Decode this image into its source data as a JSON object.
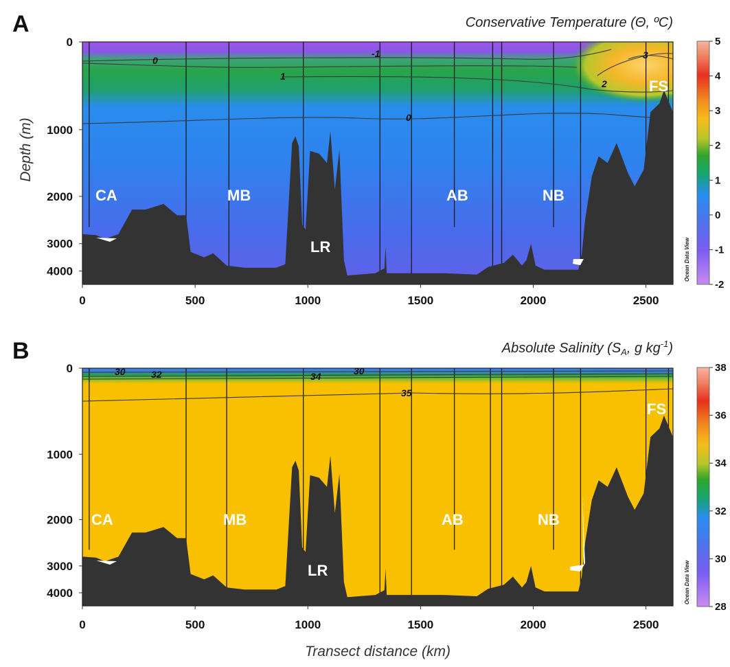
{
  "figure": {
    "x_axis_label": "Transect distance (km)",
    "colorbar_credit": "Ocean Data View"
  },
  "chart_data": [
    {
      "type": "heatmap",
      "panel_letter": "A",
      "title": "Conservative Temperature (Θ, ºC)",
      "title_parts": {
        "main": "Conservative Temperature (",
        "symbol": "Θ",
        "rest": ", ºC)"
      },
      "ylabel": "Depth (m)",
      "xlabel": "",
      "x_range_km": [
        0,
        2620
      ],
      "depth_ticks": [
        0,
        1000,
        2000,
        3000,
        4000
      ],
      "x_ticks": [
        0,
        500,
        1000,
        1500,
        2000,
        2500
      ],
      "colorbar": {
        "min": -2,
        "max": 5,
        "ticks": [
          5,
          4,
          3,
          2,
          1,
          0,
          -1,
          -2
        ]
      },
      "palette": [
        "#a455e6",
        "#7a5ef0",
        "#4f74ee",
        "#2a8cee",
        "#0fae6a",
        "#2ea52e",
        "#79c32c",
        "#f0c21a",
        "#f5a623",
        "#e6461e",
        "#f7b6a0"
      ],
      "fields": {
        "surface": "#8a57e8",
        "upper": "#27a548",
        "deep_top": "#2f82ee",
        "deep_bottom": "#6260e8",
        "warm_core": "#f6b62a"
      },
      "contour_labels": [
        "0",
        "-1",
        "1",
        "0",
        "3",
        "2"
      ],
      "regions": [
        "CA",
        "MB",
        "LR",
        "AB",
        "NB",
        "FS"
      ],
      "station_km": [
        30,
        460,
        650,
        980,
        1320,
        1460,
        1650,
        1820,
        1860,
        2090,
        2210,
        2500,
        2600
      ]
    },
    {
      "type": "heatmap",
      "panel_letter": "B",
      "title": "Absolute Salinity (SA, g kg-1)",
      "title_parts": {
        "main": "Absolute Salinity (",
        "symbol": "S",
        "sub": "A",
        "unit": ", g kg",
        "sup": "-1",
        "close": ")"
      },
      "ylabel": "",
      "xlabel": "Transect distance (km)",
      "x_range_km": [
        0,
        2620
      ],
      "depth_ticks": [
        0,
        1000,
        2000,
        3000,
        4000
      ],
      "x_ticks": [
        0,
        500,
        1000,
        1500,
        2000,
        2500
      ],
      "colorbar": {
        "min": 28,
        "max": 38,
        "ticks": [
          38,
          36,
          34,
          32,
          30,
          28
        ]
      },
      "palette": [
        "#a455e6",
        "#7a5ef0",
        "#4f74ee",
        "#2a8cee",
        "#0fae6a",
        "#2ea52e",
        "#79c32c",
        "#f0c21a",
        "#f5a623",
        "#e6461e",
        "#f7b6a0"
      ],
      "fields": {
        "surface": "#3c7fe0",
        "upper": "#21a247",
        "deep_top": "#f8c000",
        "deep_bottom": "#f8c000",
        "warm_core": "#f8c000"
      },
      "contour_labels": [
        "30",
        "32",
        "34",
        "30",
        "35"
      ],
      "regions": [
        "CA",
        "MB",
        "LR",
        "AB",
        "NB",
        "FS"
      ],
      "station_km": [
        30,
        460,
        640,
        980,
        1320,
        1460,
        1650,
        1810,
        1860,
        2090,
        2210,
        2500,
        2600
      ]
    }
  ]
}
